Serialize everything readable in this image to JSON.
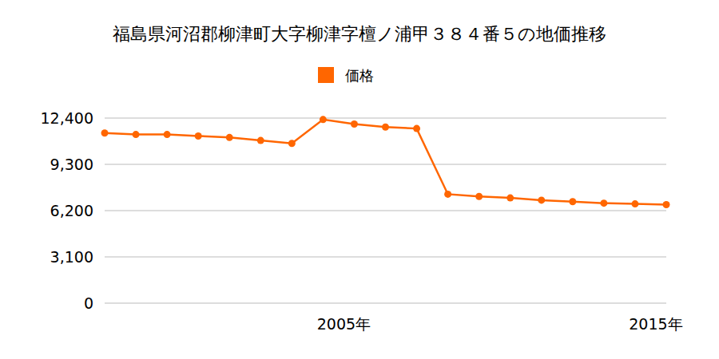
{
  "chart_data": {
    "type": "line",
    "title": "福島県河沼郡柳津町大字柳津字檀ノ浦甲３８４番５の地価推移",
    "categories": [
      null,
      null,
      null,
      null,
      null,
      null,
      null,
      "2005年",
      null,
      null,
      null,
      null,
      null,
      null,
      null,
      null,
      null,
      "2015年",
      null
    ],
    "series": [
      {
        "name": "価格",
        "color": "#ff6600",
        "marker": "circle",
        "values": [
          11400,
          11300,
          11300,
          11200,
          11100,
          10900,
          10700,
          12300,
          12000,
          11800,
          11700,
          7300,
          7150,
          7050,
          6900,
          6800,
          6700,
          6650,
          6600
        ]
      }
    ],
    "ylim": [
      0,
      12400
    ],
    "yticks": [
      0,
      {
        "value": 3100,
        "label": "3,100"
      },
      {
        "value": 6200,
        "label": "6,200"
      },
      {
        "value": 9300,
        "label": "9,300"
      },
      {
        "value": 12400,
        "label": "12,400"
      }
    ],
    "grid": true,
    "legend": "top"
  }
}
